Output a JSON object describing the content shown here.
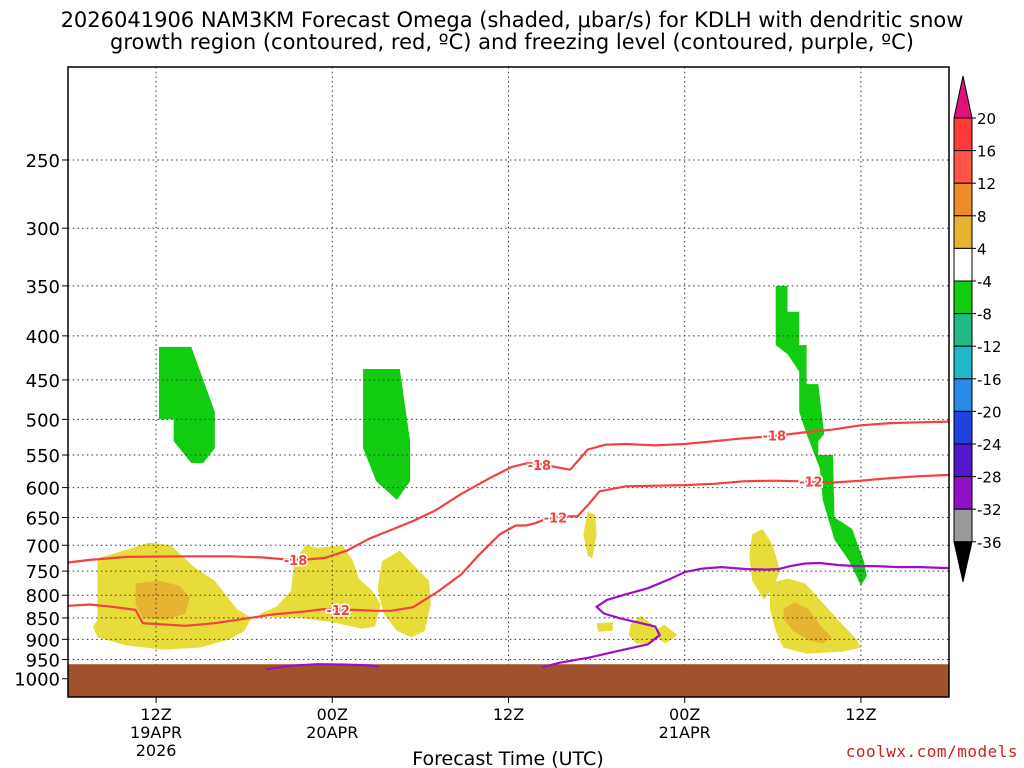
{
  "chart_data": {
    "type": "heatmap",
    "title_line1": "2026041906 NAM3KM Forecast Omega (shaded, μbar/s) for KDLH with dendritic snow",
    "title_line2": "growth region (contoured, red, ºC) and freezing level (contoured, purple, ºC)",
    "xlabel": "Forecast Time (UTC)",
    "ylabel": "",
    "y_scale": "log",
    "y_inverted": true,
    "x_range_hours": [
      0,
      60
    ],
    "y_range_hPa": [
      1050,
      195
    ],
    "x_ticks": [
      {
        "hour": 6,
        "label1": "12Z",
        "label2": "19APR",
        "label3": "2026"
      },
      {
        "hour": 18,
        "label1": "00Z",
        "label2": "20APR",
        "label3": ""
      },
      {
        "hour": 30,
        "label1": "12Z",
        "label2": "",
        "label3": ""
      },
      {
        "hour": 42,
        "label1": "00Z",
        "label2": "21APR",
        "label3": ""
      },
      {
        "hour": 54,
        "label1": "12Z",
        "label2": "",
        "label3": ""
      }
    ],
    "y_ticks": [
      250,
      300,
      350,
      400,
      450,
      500,
      550,
      600,
      650,
      700,
      750,
      800,
      850,
      900,
      950,
      1000
    ],
    "grid": true,
    "colorbar": {
      "position": "right",
      "labels": [
        "20",
        "16",
        "12",
        "8",
        "4",
        "-4",
        "-8",
        "-12",
        "-16",
        "-20",
        "-24",
        "-28",
        "-32",
        "-36"
      ],
      "colors": [
        "#ff3a3a",
        "#ff5548",
        "#ee8a2a",
        "#e6b430",
        "#e8dc3a",
        "#ffffff",
        "#12cc12",
        "#22b888",
        "#20b8c8",
        "#2a8ae8",
        "#2040e0",
        "#5418cc",
        "#9010c8",
        "#9a9a9a"
      ],
      "top_color": "#e0127a",
      "bottom_color": "#000000"
    },
    "ground": {
      "color": "#a0522d",
      "top_hPa": 962
    },
    "shaded_regions": [
      {
        "name": "up-19apr-upper",
        "color": "#12cc12",
        "points": [
          [
            6.2,
            412
          ],
          [
            8.4,
            412
          ],
          [
            10,
            490
          ],
          [
            10,
            540
          ],
          [
            9.2,
            562
          ],
          [
            8.4,
            562
          ],
          [
            7.2,
            530
          ],
          [
            7.2,
            500
          ],
          [
            6.2,
            500
          ]
        ]
      },
      {
        "name": "up-20apr-mid",
        "color": "#12cc12",
        "points": [
          [
            20.1,
            437
          ],
          [
            22.6,
            437
          ],
          [
            23.3,
            530
          ],
          [
            23.3,
            590
          ],
          [
            22.4,
            620
          ],
          [
            21,
            590
          ],
          [
            20.1,
            540
          ]
        ]
      },
      {
        "name": "up-21apr-upper",
        "color": "#12cc12",
        "points": [
          [
            48.2,
            350
          ],
          [
            49.0,
            350
          ],
          [
            49.0,
            375
          ],
          [
            49.8,
            375
          ],
          [
            49.8,
            410
          ],
          [
            50.3,
            410
          ],
          [
            50.3,
            455
          ],
          [
            51.1,
            455
          ],
          [
            51.5,
            520
          ],
          [
            51.1,
            530
          ],
          [
            51.1,
            550
          ],
          [
            52.1,
            550
          ],
          [
            52.2,
            650
          ],
          [
            53.4,
            670
          ],
          [
            54.2,
            730
          ],
          [
            54.4,
            760
          ],
          [
            54.0,
            780
          ],
          [
            53.2,
            730
          ],
          [
            52.2,
            690
          ],
          [
            51.4,
            620
          ],
          [
            51.2,
            570
          ],
          [
            50.3,
            520
          ],
          [
            49.8,
            490
          ],
          [
            49.8,
            440
          ],
          [
            49.0,
            420
          ],
          [
            48.2,
            410
          ]
        ]
      },
      {
        "name": "down-19apr-low",
        "color": "#e8dc3a",
        "points": [
          [
            2.0,
            725
          ],
          [
            3.8,
            710
          ],
          [
            5.5,
            695
          ],
          [
            7.0,
            700
          ],
          [
            8.5,
            740
          ],
          [
            10.0,
            770
          ],
          [
            11.5,
            830
          ],
          [
            12.5,
            850
          ],
          [
            12.0,
            880
          ],
          [
            11.0,
            900
          ],
          [
            9.0,
            920
          ],
          [
            6.5,
            925
          ],
          [
            4.0,
            915
          ],
          [
            2.0,
            895
          ],
          [
            1.7,
            870
          ],
          [
            2.0,
            855
          ],
          [
            2.0,
            800
          ]
        ]
      },
      {
        "name": "down-19apr-core",
        "color": "#e6b430",
        "points": [
          [
            4.6,
            775
          ],
          [
            6.2,
            770
          ],
          [
            7.6,
            780
          ],
          [
            8.3,
            805
          ],
          [
            8.0,
            840
          ],
          [
            6.6,
            855
          ],
          [
            5.1,
            850
          ],
          [
            4.6,
            820
          ]
        ]
      },
      {
        "name": "down-20apr-low",
        "color": "#e8dc3a",
        "points": [
          [
            15.4,
            730
          ],
          [
            16.2,
            700
          ],
          [
            17.0,
            705
          ],
          [
            18.7,
            700
          ],
          [
            19.4,
            730
          ],
          [
            19.8,
            765
          ],
          [
            20.7,
            790
          ],
          [
            21.3,
            820
          ],
          [
            20.9,
            870
          ],
          [
            20.0,
            875
          ],
          [
            18.0,
            860
          ],
          [
            15.8,
            850
          ],
          [
            14.0,
            848
          ],
          [
            13.0,
            842
          ],
          [
            14.2,
            825
          ],
          [
            15.2,
            790
          ]
        ]
      },
      {
        "name": "down-20apr-b",
        "color": "#e8dc3a",
        "points": [
          [
            21.4,
            730
          ],
          [
            22.6,
            710
          ],
          [
            23.6,
            740
          ],
          [
            24.6,
            770
          ],
          [
            24.7,
            820
          ],
          [
            24.3,
            880
          ],
          [
            23.4,
            895
          ],
          [
            22.4,
            880
          ],
          [
            21.5,
            840
          ],
          [
            21.1,
            790
          ],
          [
            21.2,
            760
          ]
        ]
      },
      {
        "name": "down-20apr-c",
        "color": "#e8dc3a",
        "points": [
          [
            35.4,
            640
          ],
          [
            35.9,
            645
          ],
          [
            36.0,
            680
          ],
          [
            35.7,
            725
          ],
          [
            35.4,
            720
          ],
          [
            35.1,
            680
          ]
        ]
      },
      {
        "name": "down-20apr-d",
        "color": "#e8dc3a",
        "points": [
          [
            36.0,
            862
          ],
          [
            37.1,
            860
          ],
          [
            37.1,
            880
          ],
          [
            36.1,
            882
          ]
        ]
      },
      {
        "name": "down-20apr-e",
        "color": "#e8dc3a",
        "points": [
          [
            38.3,
            865
          ],
          [
            39.0,
            845
          ],
          [
            39.8,
            865
          ],
          [
            40.2,
            890
          ],
          [
            39.7,
            910
          ],
          [
            38.7,
            910
          ],
          [
            38.2,
            890
          ]
        ]
      },
      {
        "name": "down-20apr-f",
        "color": "#e8dc3a",
        "points": [
          [
            40.0,
            880
          ],
          [
            40.6,
            865
          ],
          [
            41.5,
            890
          ],
          [
            40.7,
            910
          ],
          [
            40.1,
            895
          ]
        ]
      },
      {
        "name": "down-21apr-mid",
        "color": "#e8dc3a",
        "points": [
          [
            46.6,
            680
          ],
          [
            47.3,
            670
          ],
          [
            48.0,
            700
          ],
          [
            48.5,
            750
          ],
          [
            48.0,
            785
          ],
          [
            47.4,
            810
          ],
          [
            46.6,
            770
          ],
          [
            46.4,
            720
          ]
        ]
      },
      {
        "name": "down-21apr-low",
        "color": "#e8dc3a",
        "points": [
          [
            47.8,
            775
          ],
          [
            49.0,
            765
          ],
          [
            50.2,
            775
          ],
          [
            51.5,
            820
          ],
          [
            52.6,
            860
          ],
          [
            53.7,
            900
          ],
          [
            54.0,
            920
          ],
          [
            52.8,
            930
          ],
          [
            50.3,
            935
          ],
          [
            48.7,
            920
          ],
          [
            48.2,
            880
          ],
          [
            47.8,
            830
          ]
        ]
      },
      {
        "name": "down-21apr-core",
        "color": "#e6b430",
        "points": [
          [
            48.7,
            830
          ],
          [
            49.5,
            815
          ],
          [
            50.4,
            830
          ],
          [
            51.3,
            870
          ],
          [
            52.0,
            895
          ],
          [
            51.4,
            910
          ],
          [
            50.5,
            903
          ],
          [
            49.4,
            880
          ],
          [
            48.8,
            855
          ]
        ]
      }
    ],
    "contours": [
      {
        "name": "dgz-minus-18",
        "label": "-18",
        "color": "#f44040",
        "points": [
          [
            0,
            733
          ],
          [
            1.5,
            728
          ],
          [
            4,
            722
          ],
          [
            8,
            721
          ],
          [
            11,
            721
          ],
          [
            13.2,
            723
          ],
          [
            14.8,
            727
          ],
          [
            16,
            728
          ],
          [
            17.5,
            724
          ],
          [
            19,
            710
          ],
          [
            20.5,
            688
          ],
          [
            22,
            672
          ],
          [
            23.5,
            656
          ],
          [
            25,
            638
          ],
          [
            26.8,
            610
          ],
          [
            28.8,
            584
          ],
          [
            30.2,
            568
          ],
          [
            31.3,
            562
          ],
          [
            32.2,
            563
          ],
          [
            33.2,
            568
          ],
          [
            34.2,
            572
          ],
          [
            35.4,
            542
          ],
          [
            36.6,
            535
          ],
          [
            38,
            534
          ],
          [
            40,
            536
          ],
          [
            42,
            534
          ],
          [
            44,
            530
          ],
          [
            46,
            526
          ],
          [
            48,
            523
          ],
          [
            50,
            518
          ],
          [
            52,
            514
          ],
          [
            54,
            508
          ],
          [
            56,
            505
          ],
          [
            58,
            504
          ],
          [
            60,
            503
          ]
        ],
        "label_positions": [
          [
            15.5,
            728
          ],
          [
            32.1,
            565
          ],
          [
            48.1,
            522
          ]
        ]
      },
      {
        "name": "dgz-minus-12",
        "label": "-12",
        "color": "#f44040",
        "points": [
          [
            0,
            823
          ],
          [
            1.5,
            820
          ],
          [
            3,
            825
          ],
          [
            4.6,
            832
          ],
          [
            5.1,
            862
          ],
          [
            6,
            864
          ],
          [
            8,
            868
          ],
          [
            10,
            862
          ],
          [
            12,
            852
          ],
          [
            14,
            842
          ],
          [
            16,
            836
          ],
          [
            17.5,
            830
          ],
          [
            19.5,
            832
          ],
          [
            21,
            834
          ],
          [
            22,
            834
          ],
          [
            23.5,
            826
          ],
          [
            25.2,
            792
          ],
          [
            26.8,
            756
          ],
          [
            28,
            718
          ],
          [
            29.4,
            680
          ],
          [
            30.5,
            664
          ],
          [
            31.2,
            664
          ],
          [
            31.8,
            660
          ],
          [
            32.5,
            653
          ],
          [
            33.5,
            648
          ],
          [
            34.7,
            648
          ],
          [
            35.5,
            626
          ],
          [
            36.2,
            606
          ],
          [
            38,
            598
          ],
          [
            40,
            597
          ],
          [
            42,
            596
          ],
          [
            44,
            594
          ],
          [
            46,
            590
          ],
          [
            48,
            589
          ],
          [
            50,
            590
          ],
          [
            52,
            592
          ],
          [
            54,
            589
          ],
          [
            56,
            585
          ],
          [
            58,
            582
          ],
          [
            60,
            580
          ]
        ],
        "label_positions": [
          [
            18.4,
            832
          ],
          [
            33.2,
            650
          ],
          [
            50.6,
            590
          ]
        ]
      },
      {
        "name": "freezing-level-lower",
        "label": "",
        "color": "#9a10c8",
        "points": [
          [
            13.5,
            975
          ],
          [
            15,
            966
          ],
          [
            17,
            962
          ],
          [
            19,
            963
          ],
          [
            20.5,
            965
          ],
          [
            21.2,
            968
          ]
        ]
      },
      {
        "name": "freezing-level-upper",
        "label": "",
        "color": "#9a10c8",
        "points": [
          [
            32.3,
            970
          ],
          [
            33.5,
            958
          ],
          [
            35.5,
            945
          ],
          [
            37.5,
            928
          ],
          [
            39.5,
            912
          ],
          [
            40.3,
            890
          ],
          [
            40.0,
            870
          ],
          [
            38.5,
            858
          ],
          [
            37.5,
            850
          ],
          [
            36.5,
            840
          ],
          [
            36,
            825
          ],
          [
            36.7,
            810
          ],
          [
            38,
            798
          ],
          [
            39.5,
            785
          ],
          [
            41,
            766
          ],
          [
            42,
            752
          ],
          [
            43.2,
            745
          ],
          [
            44.5,
            742
          ],
          [
            46.2,
            746
          ],
          [
            47.5,
            747
          ],
          [
            48.4,
            746
          ],
          [
            49.2,
            740
          ],
          [
            50.2,
            735
          ],
          [
            51.2,
            734
          ],
          [
            52.5,
            738
          ],
          [
            53.8,
            740
          ],
          [
            55,
            740
          ],
          [
            56.5,
            742
          ],
          [
            58,
            742
          ],
          [
            60,
            744
          ]
        ]
      }
    ]
  },
  "credit": "coolwx.com/models"
}
